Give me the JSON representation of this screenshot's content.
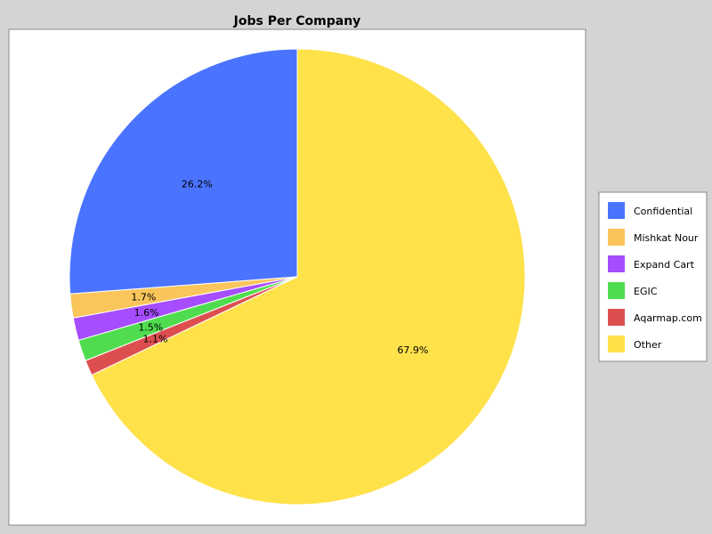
{
  "chart_data": {
    "type": "pie",
    "title": "Jobs Per Company",
    "legend_position": "right",
    "slices": [
      {
        "name": "Confidential",
        "value": 26.2,
        "label": "26.2%",
        "color": "#4a74ff"
      },
      {
        "name": "Mishkat Nour",
        "value": 1.7,
        "label": "1.7%",
        "color": "#fac55a"
      },
      {
        "name": "Expand Cart",
        "value": 1.6,
        "label": "1.6%",
        "color": "#a64dff"
      },
      {
        "name": "EGIC",
        "value": 1.5,
        "label": "1.5%",
        "color": "#4fdd4f"
      },
      {
        "name": "Aqarmap.com",
        "value": 1.1,
        "label": "1.1%",
        "color": "#dd4f4f"
      },
      {
        "name": "Other",
        "value": 67.9,
        "label": "67.9%",
        "color": "#ffe14a"
      }
    ]
  },
  "colors": {
    "page_background": "#d4d4d4",
    "plot_background": "#ffffff",
    "border": "#888888"
  }
}
